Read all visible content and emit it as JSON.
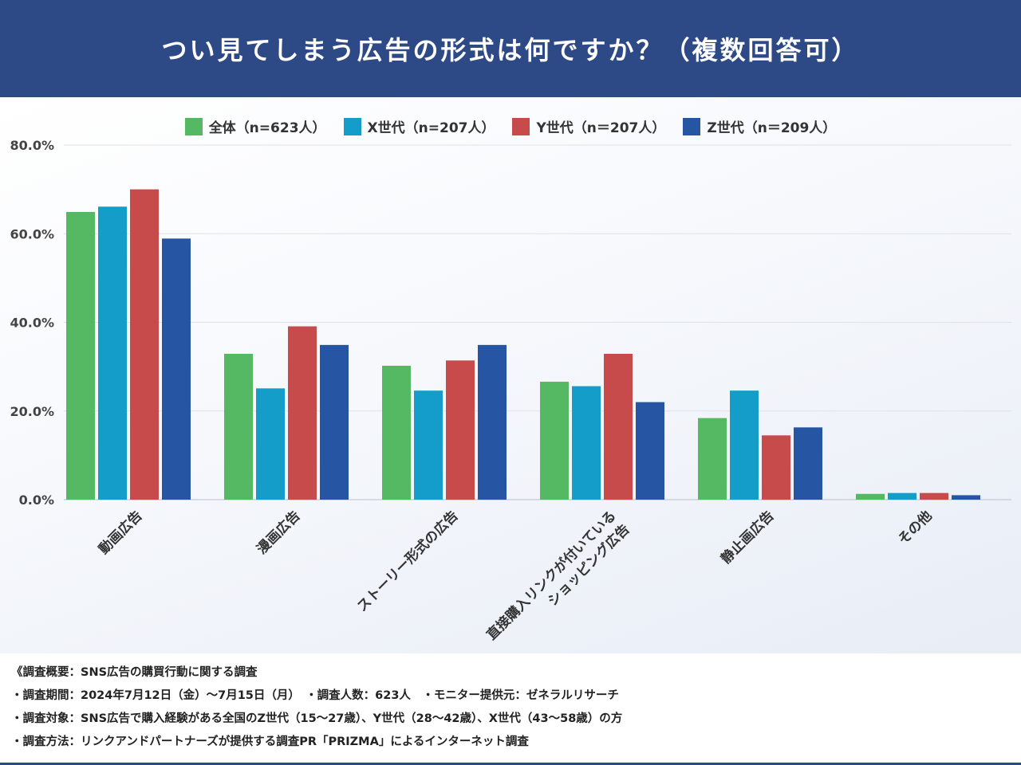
{
  "header": {
    "title": "つい見てしまう広告の形式は何ですか？（複数回答可）"
  },
  "chart_data": {
    "type": "bar",
    "categories": [
      "動画広告",
      "漫画広告",
      "ストーリー形式の広告",
      "直接購入リンクが付いている\nショッピング広告",
      "静止画広告",
      "その他"
    ],
    "series": [
      {
        "name": "全体（n=623人）",
        "color": "#55b863",
        "values": [
          64.9,
          32.9,
          30.2,
          26.6,
          18.4,
          1.3
        ]
      },
      {
        "name": "X世代（n=207人）",
        "color": "#139dc8",
        "values": [
          66.1,
          25.1,
          24.6,
          25.6,
          24.6,
          1.5
        ]
      },
      {
        "name": "Y世代（n＝207人）",
        "color": "#c64b4a",
        "values": [
          70.0,
          39.1,
          31.4,
          32.9,
          14.5,
          1.5
        ]
      },
      {
        "name": "Z世代（n＝209人）",
        "color": "#2555a3",
        "values": [
          58.9,
          34.9,
          34.9,
          22.0,
          16.3,
          1.0
        ]
      }
    ],
    "y_ticks": [
      "0.0%",
      "20.0%",
      "40.0%",
      "60.0%",
      "80.0%"
    ],
    "ylim": [
      0,
      80
    ],
    "grid": true,
    "legend_position": "top-center"
  },
  "footer": {
    "lines": [
      "《調査概要：SNS広告の購買行動に関する調査",
      "・調査期間：2024年7月12日（金）〜7月15日（月）　・調査人数：623人　・モニター提供元：ゼネラルリサーチ",
      "・調査対象：SNS広告で購入経験がある全国のZ世代（15〜27歳）、Y世代（28〜42歳）、X世代（43〜58歳）の方",
      "・調査方法：リンクアンドパートナーズが提供する調査PR「PRIZMA」によるインターネット調査"
    ]
  }
}
